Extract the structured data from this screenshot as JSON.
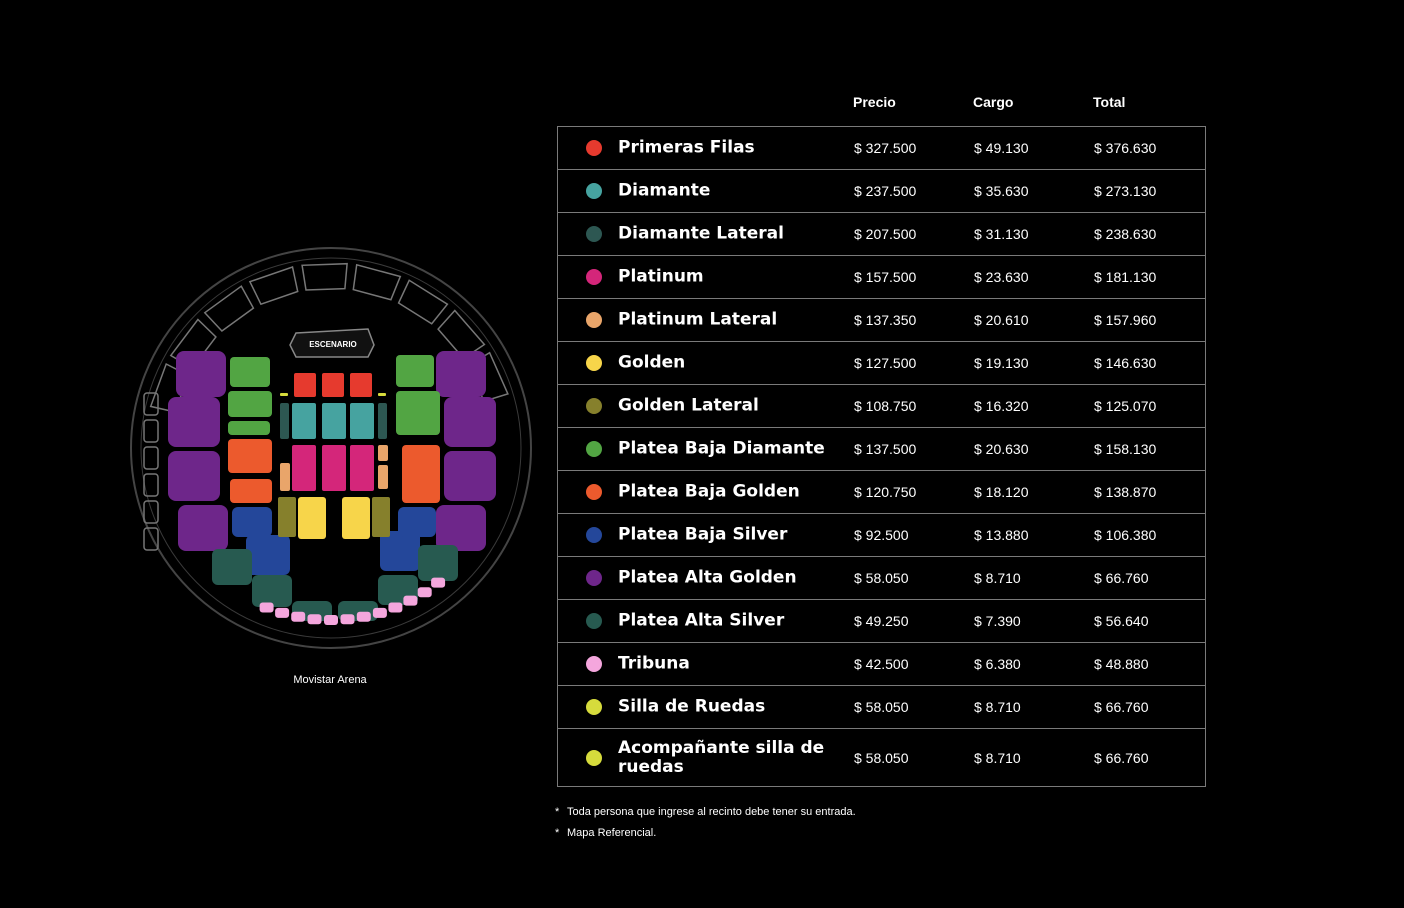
{
  "map": {
    "stage_label": "ESCENARIO",
    "caption": "Movistar Arena"
  },
  "table": {
    "headers": {
      "precio": "Precio",
      "cargo": "Cargo",
      "total": "Total"
    },
    "rows": [
      {
        "name": "Primeras Filas",
        "color": "#e63a2e",
        "precio": "$ 327.500",
        "cargo": "$ 49.130",
        "total": "$ 376.630"
      },
      {
        "name": "Diamante",
        "color": "#46a3a0",
        "precio": "$ 237.500",
        "cargo": "$ 35.630",
        "total": "$ 273.130"
      },
      {
        "name": "Diamante Lateral",
        "color": "#2d5752",
        "precio": "$ 207.500",
        "cargo": "$ 31.130",
        "total": "$ 238.630"
      },
      {
        "name": "Platinum",
        "color": "#d4267a",
        "precio": "$ 157.500",
        "cargo": "$ 23.630",
        "total": "$ 181.130"
      },
      {
        "name": "Platinum Lateral",
        "color": "#e9a56a",
        "precio": "$ 137.350",
        "cargo": "$ 20.610",
        "total": "$ 157.960"
      },
      {
        "name": "Golden",
        "color": "#f7d54a",
        "precio": "$ 127.500",
        "cargo": "$ 19.130",
        "total": "$ 146.630"
      },
      {
        "name": "Golden Lateral",
        "color": "#86802c",
        "precio": "$ 108.750",
        "cargo": "$ 16.320",
        "total": "$ 125.070"
      },
      {
        "name": "Platea Baja Diamante",
        "color": "#52a543",
        "precio": "$ 137.500",
        "cargo": "$ 20.630",
        "total": "$ 158.130"
      },
      {
        "name": "Platea Baja Golden",
        "color": "#ec5a2d",
        "precio": "$ 120.750",
        "cargo": "$ 18.120",
        "total": "$ 138.870"
      },
      {
        "name": "Platea Baja Silver",
        "color": "#24479a",
        "precio": "$ 92.500",
        "cargo": "$ 13.880",
        "total": "$ 106.380"
      },
      {
        "name": "Platea Alta Golden",
        "color": "#6e268a",
        "precio": "$ 58.050",
        "cargo": "$ 8.710",
        "total": "$ 66.760"
      },
      {
        "name": "Platea Alta Silver",
        "color": "#275a50",
        "precio": "$ 49.250",
        "cargo": "$ 7.390",
        "total": "$ 56.640"
      },
      {
        "name": "Tribuna",
        "color": "#f4a6dd",
        "precio": "$ 42.500",
        "cargo": "$ 6.380",
        "total": "$ 48.880"
      },
      {
        "name": "Silla de Ruedas",
        "color": "#d6db3c",
        "precio": "$ 58.050",
        "cargo": "$ 8.710",
        "total": "$ 66.760"
      },
      {
        "name": "Acompañante silla de ruedas",
        "color": "#d6db3c",
        "precio": "$ 58.050",
        "cargo": "$ 8.710",
        "total": "$ 66.760"
      }
    ]
  },
  "notes": [
    "Toda persona que ingrese al recinto debe tener su entrada.",
    "Mapa Referencial."
  ],
  "note_bullet": "*"
}
